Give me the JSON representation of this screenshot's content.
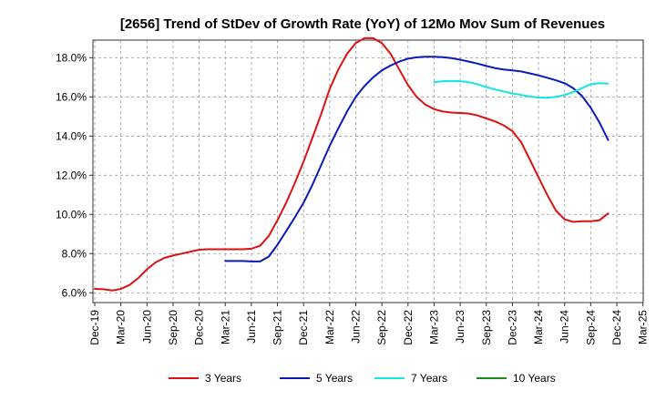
{
  "chart_data": {
    "type": "line",
    "title": "[2656]  Trend of StDev of Growth Rate (YoY) of 12Mo Mov Sum of Revenues",
    "xlabel": "",
    "ylabel": "",
    "ylim": [
      5.5,
      18.9
    ],
    "yticks": [
      6.0,
      8.0,
      10.0,
      12.0,
      14.0,
      16.0,
      18.0
    ],
    "ytick_labels": [
      "6.0%",
      "8.0%",
      "10.0%",
      "12.0%",
      "14.0%",
      "16.0%",
      "18.0%"
    ],
    "xtick_labels": [
      "Dec-19",
      "Mar-20",
      "Jun-20",
      "Sep-20",
      "Dec-20",
      "Mar-21",
      "Jun-21",
      "Sep-21",
      "Dec-21",
      "Mar-22",
      "Jun-22",
      "Sep-22",
      "Dec-22",
      "Mar-23",
      "Jun-23",
      "Sep-23",
      "Dec-23",
      "Mar-24",
      "Jun-24",
      "Sep-24",
      "Dec-24",
      "Mar-25"
    ],
    "x_months": [
      "2019-12",
      "2020-01",
      "2020-02",
      "2020-03",
      "2020-04",
      "2020-05",
      "2020-06",
      "2020-07",
      "2020-08",
      "2020-09",
      "2020-10",
      "2020-11",
      "2020-12",
      "2021-01",
      "2021-02",
      "2021-03",
      "2021-04",
      "2021-05",
      "2021-06",
      "2021-07",
      "2021-08",
      "2021-09",
      "2021-10",
      "2021-11",
      "2021-12",
      "2022-01",
      "2022-02",
      "2022-03",
      "2022-04",
      "2022-05",
      "2022-06",
      "2022-07",
      "2022-08",
      "2022-09",
      "2022-10",
      "2022-11",
      "2022-12",
      "2023-01",
      "2023-02",
      "2023-03",
      "2023-04",
      "2023-05",
      "2023-06",
      "2023-07",
      "2023-08",
      "2023-09",
      "2023-10",
      "2023-11",
      "2023-12",
      "2024-01",
      "2024-02",
      "2024-03",
      "2024-04",
      "2024-05",
      "2024-06",
      "2024-07",
      "2024-08",
      "2024-09",
      "2024-10",
      "2024-11",
      "2024-12"
    ],
    "grid": true,
    "legend_position": "bottom",
    "series": [
      {
        "name": "3 Years",
        "color": "#dd1111",
        "values": [
          6.2,
          6.18,
          6.12,
          6.2,
          6.4,
          6.75,
          7.2,
          7.55,
          7.78,
          7.9,
          8.0,
          8.1,
          8.2,
          8.22,
          8.22,
          8.22,
          8.22,
          8.22,
          8.25,
          8.4,
          8.9,
          9.7,
          10.6,
          11.6,
          12.7,
          13.9,
          15.1,
          16.4,
          17.4,
          18.2,
          18.75,
          19.0,
          19.0,
          18.75,
          18.2,
          17.4,
          16.6,
          16.0,
          15.6,
          15.38,
          15.25,
          15.2,
          15.18,
          15.15,
          15.05,
          14.9,
          14.75,
          14.55,
          14.25,
          13.7,
          12.8,
          11.9,
          11.0,
          10.2,
          9.75,
          9.62,
          9.65,
          9.65,
          9.7,
          10.05,
          null
        ]
      },
      {
        "name": "5 Years",
        "color": "#0a1aba",
        "values": [
          null,
          null,
          null,
          null,
          null,
          null,
          null,
          null,
          null,
          null,
          null,
          null,
          null,
          null,
          null,
          7.62,
          7.62,
          7.62,
          7.6,
          7.6,
          7.85,
          8.45,
          9.15,
          9.85,
          10.6,
          11.5,
          12.5,
          13.5,
          14.4,
          15.25,
          16.0,
          16.55,
          17.0,
          17.35,
          17.6,
          17.8,
          17.95,
          18.02,
          18.05,
          18.05,
          18.03,
          17.98,
          17.9,
          17.8,
          17.7,
          17.58,
          17.47,
          17.4,
          17.35,
          17.3,
          17.2,
          17.1,
          16.98,
          16.85,
          16.7,
          16.45,
          16.05,
          15.45,
          14.7,
          13.8,
          null
        ]
      },
      {
        "name": "7 Years",
        "color": "#11e6e6",
        "values": [
          null,
          null,
          null,
          null,
          null,
          null,
          null,
          null,
          null,
          null,
          null,
          null,
          null,
          null,
          null,
          null,
          null,
          null,
          null,
          null,
          null,
          null,
          null,
          null,
          null,
          null,
          null,
          null,
          null,
          null,
          null,
          null,
          null,
          null,
          null,
          null,
          null,
          null,
          null,
          16.75,
          16.8,
          16.82,
          16.8,
          16.75,
          16.65,
          16.5,
          16.38,
          16.28,
          16.18,
          16.1,
          16.02,
          15.97,
          15.95,
          16.0,
          16.1,
          16.25,
          16.45,
          16.65,
          16.7,
          16.68,
          null
        ]
      },
      {
        "name": "10 Years",
        "color": "#1a8a1a",
        "values": []
      }
    ]
  }
}
